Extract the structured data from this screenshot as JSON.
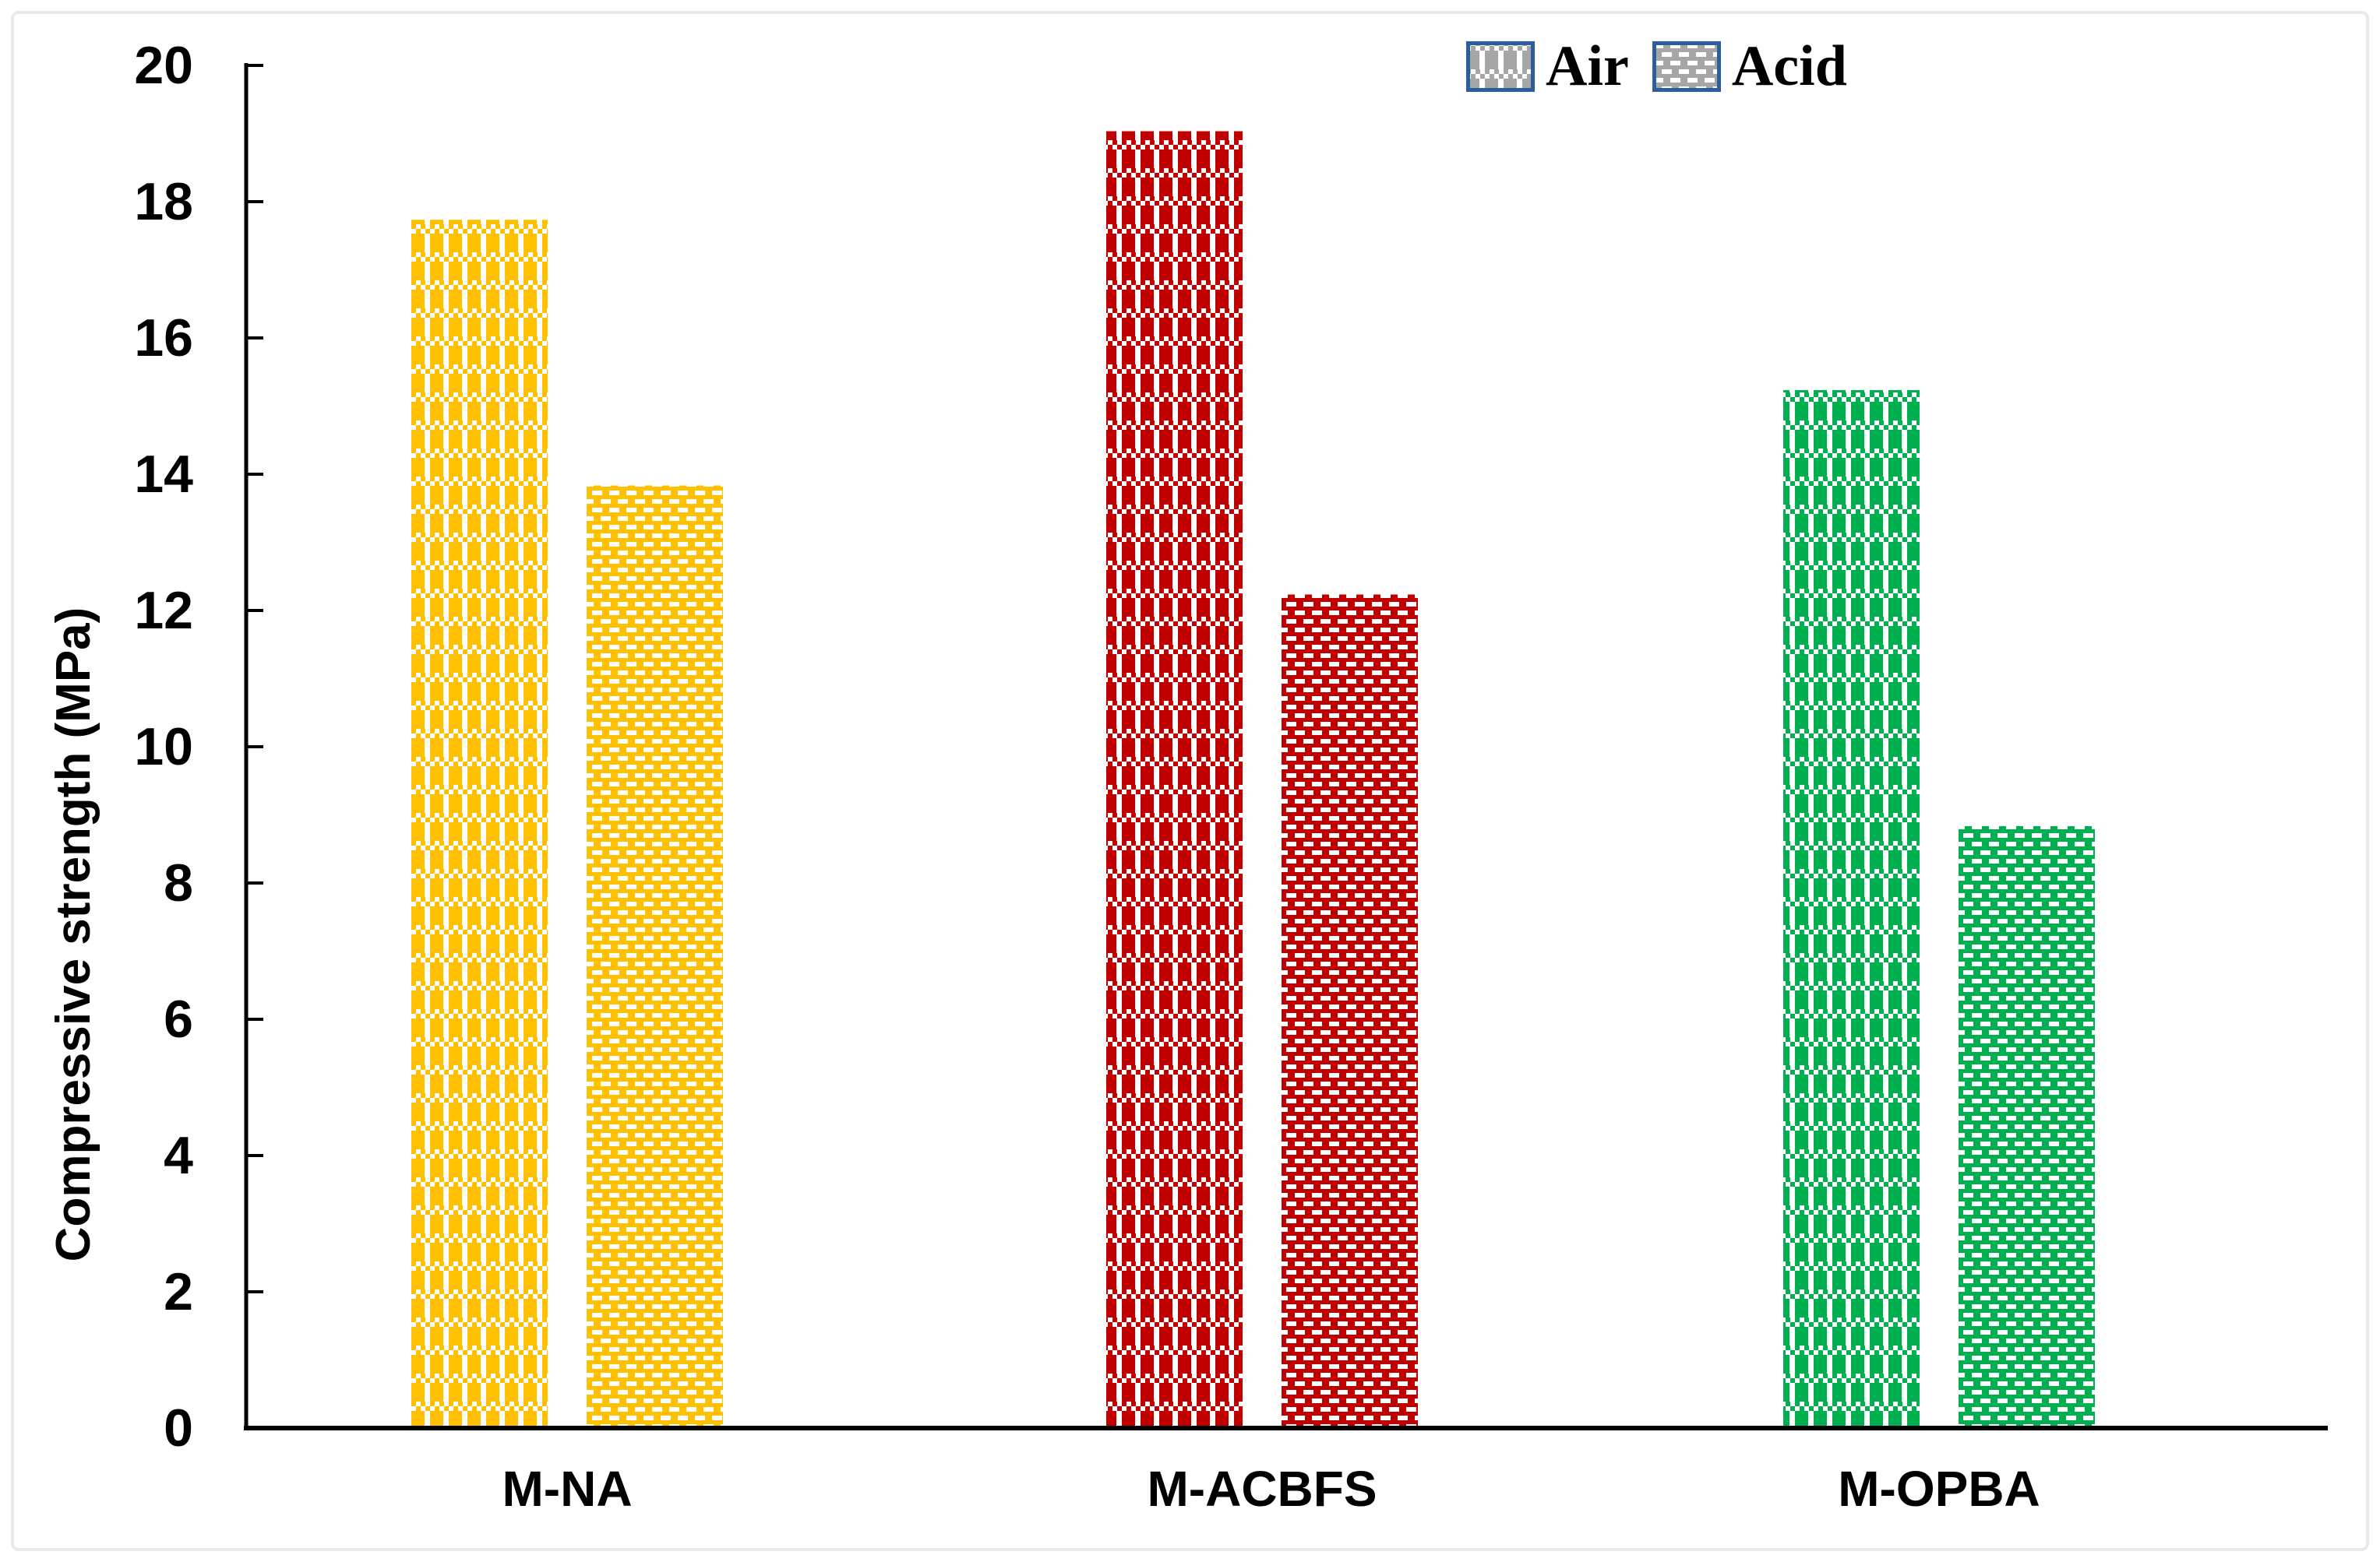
{
  "figure": {
    "background": "#FFFFFF",
    "frame_color": "#E9E9E9",
    "axis_color": "#000000"
  },
  "chart_data": {
    "type": "bar",
    "title": "",
    "categories": [
      "M-NA",
      "M-ACBFS",
      "M-OPBA"
    ],
    "category_colors": [
      "#FFC000",
      "#C00000",
      "#00B050"
    ],
    "series": [
      {
        "name": "Air",
        "pattern": "weave",
        "values": [
          17.7,
          19.0,
          15.2
        ]
      },
      {
        "name": "Acid",
        "pattern": "dash",
        "values": [
          13.8,
          12.2,
          8.8
        ]
      }
    ],
    "xlabel": "",
    "ylabel": "Compressive strength (MPa)",
    "ylim": [
      0,
      20
    ],
    "yticks": [
      0,
      2,
      4,
      6,
      8,
      10,
      12,
      14,
      16,
      18,
      20
    ],
    "grid": false,
    "legend": {
      "position": "top-right",
      "entries": [
        "Air",
        "Acid"
      ],
      "swatch_color": "#A6A6A6",
      "swatch_border": "#2C5D9E"
    }
  }
}
